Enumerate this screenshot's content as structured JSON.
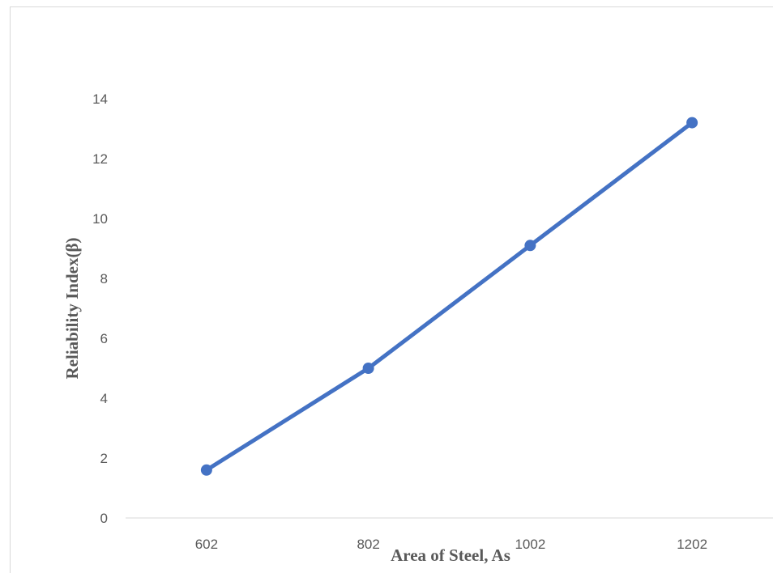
{
  "chart_data": {
    "type": "line",
    "title": "",
    "xlabel": "Area of Steel, As",
    "ylabel": "Reliability Index(β)",
    "categories": [
      "602",
      "802",
      "1002",
      "1202"
    ],
    "series": [
      {
        "values": [
          1.6,
          5.0,
          9.1,
          13.2
        ]
      }
    ],
    "ylim": [
      0,
      14
    ],
    "yticks": [
      "0",
      "2",
      "4",
      "6",
      "8",
      "10",
      "12",
      "14"
    ],
    "grid": false,
    "legend": "none",
    "colors": {
      "series": "#4472c4",
      "axis": "#d9d9d9",
      "text": "#595959"
    }
  }
}
